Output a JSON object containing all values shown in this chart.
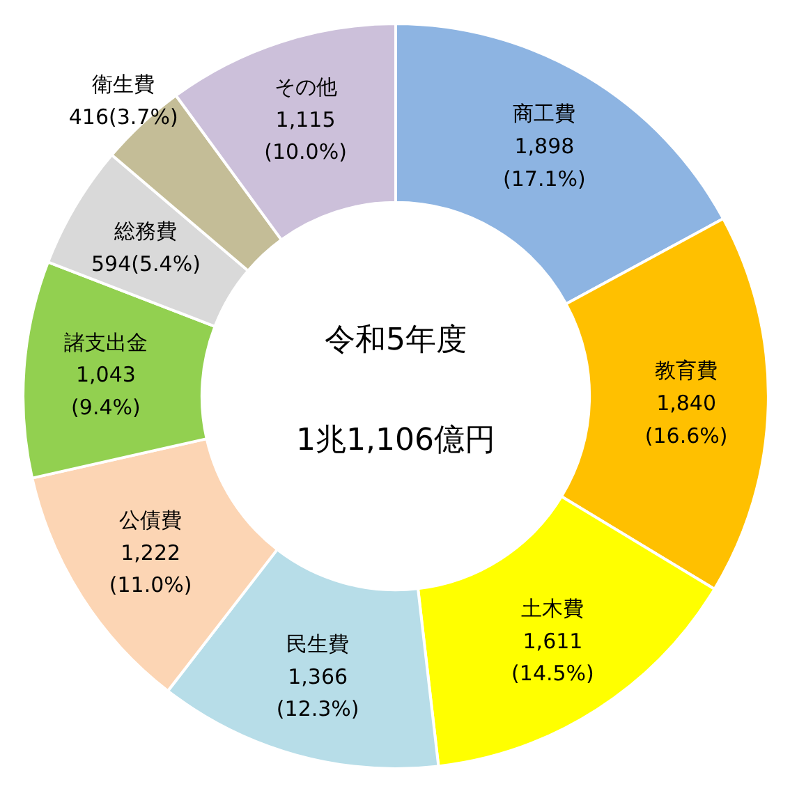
{
  "chart_data": {
    "type": "donut",
    "title": "令和5年度",
    "subtitle": "1兆1,106億円",
    "categories": [
      "商工費",
      "教育費",
      "土木費",
      "民生費",
      "公債費",
      "諸支出金",
      "総務費",
      "衛生費",
      "その他"
    ],
    "values": [
      1898,
      1840,
      1611,
      1366,
      1222,
      1043,
      594,
      416,
      1115
    ],
    "value_labels": [
      "1,898\n(17.1%)",
      "1,840\n(16.6%)",
      "1,611\n(14.5%)",
      "1,366\n(12.3%)",
      "1,222\n(11.0%)",
      "1,043\n(9.4%)",
      "594(5.4%)",
      "416(3.7%)",
      "1,115\n(10.0%)"
    ],
    "colors": [
      "#8db4e2",
      "#ffc000",
      "#ffff00",
      "#b7dde8",
      "#fcd5b4",
      "#92d050",
      "#d9d9d9",
      "#c4bd97",
      "#ccc0da"
    ],
    "legend": false
  }
}
